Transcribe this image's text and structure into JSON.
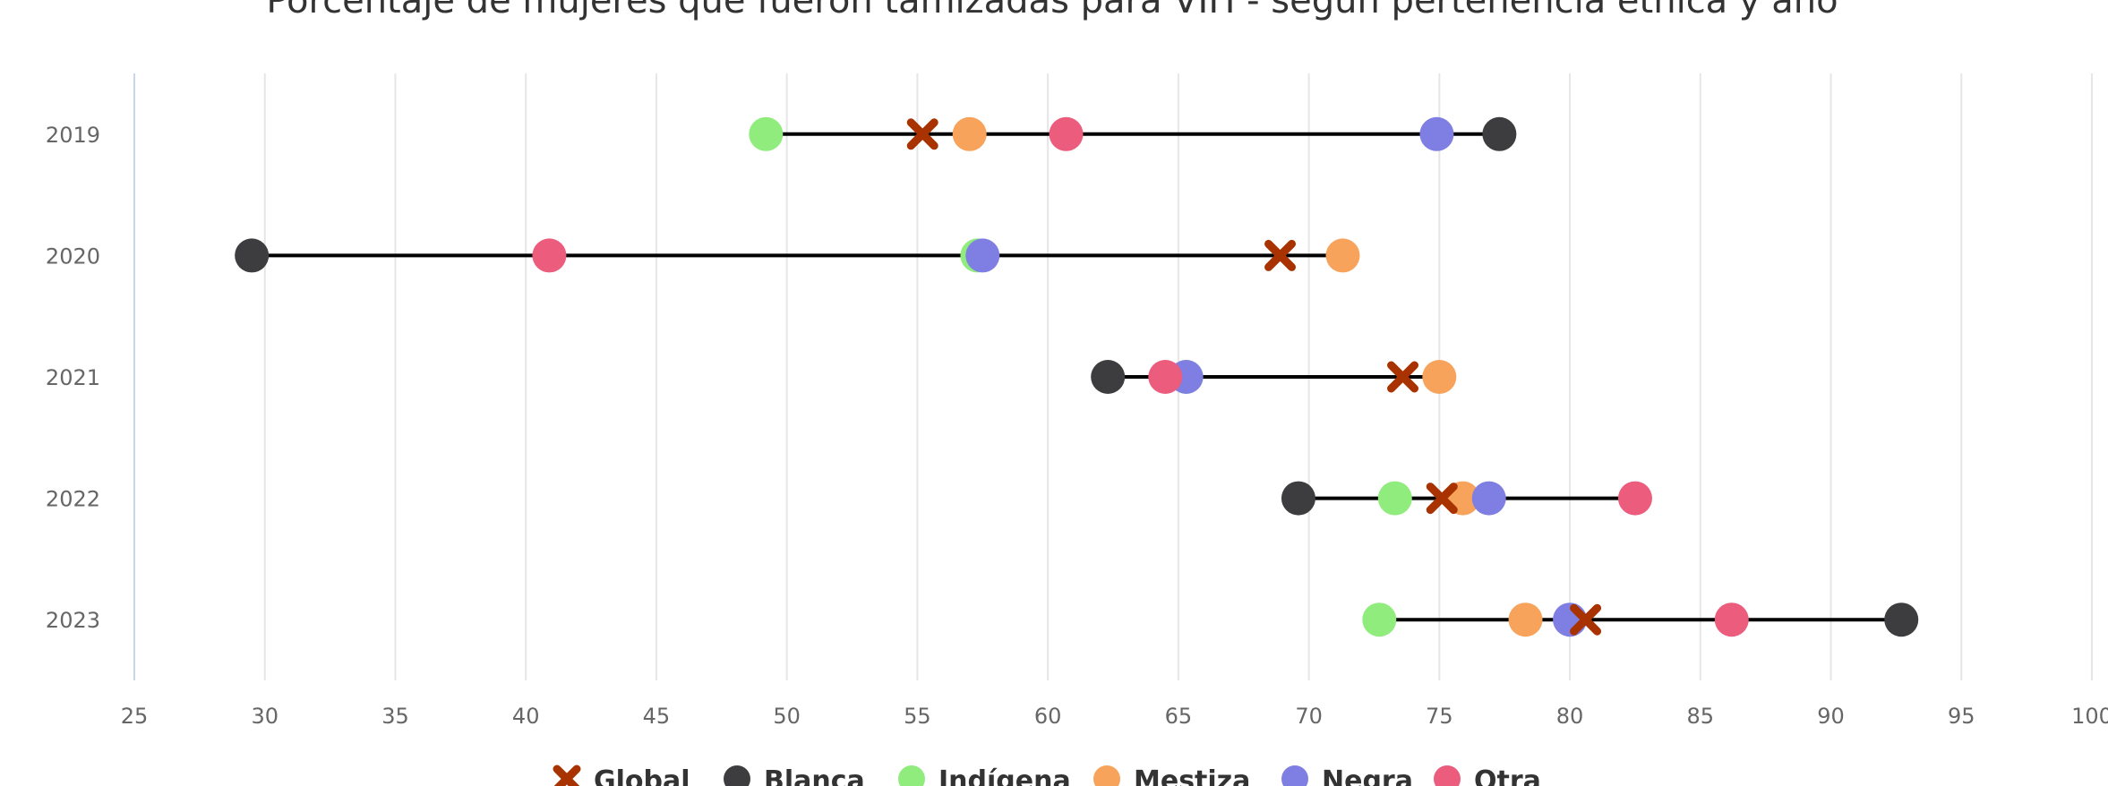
{
  "chart_data": {
    "type": "scatter",
    "subtype": "dumbbell",
    "title": "Porcentaje de mujeres que fueron tamizadas para VIH - según pertenencia étnica y año",
    "xlim": [
      25,
      100
    ],
    "x_ticks": [
      25,
      30,
      35,
      40,
      45,
      50,
      55,
      60,
      65,
      70,
      75,
      80,
      85,
      90,
      95,
      100
    ],
    "categories": [
      "2019",
      "2020",
      "2021",
      "2022",
      "2023"
    ],
    "grid": true,
    "legend_position": "bottom",
    "series": [
      {
        "name": "Global",
        "marker": "cross",
        "color": "#a83200",
        "values": [
          55.2,
          68.9,
          73.6,
          75.1,
          80.6
        ]
      },
      {
        "name": "Blanca",
        "marker": "circle",
        "color": "#3d3d3f",
        "values": [
          77.3,
          29.5,
          62.3,
          69.6,
          92.7
        ]
      },
      {
        "name": "Indígena",
        "marker": "circle",
        "color": "#90ed7d",
        "values": [
          49.2,
          57.3,
          65.3,
          73.3,
          72.7
        ]
      },
      {
        "name": "Mestiza",
        "marker": "circle",
        "color": "#f7a35c",
        "values": [
          57.0,
          71.3,
          75.0,
          75.9,
          78.3
        ]
      },
      {
        "name": "Negra",
        "marker": "circle",
        "color": "#7f7fe3",
        "values": [
          74.9,
          57.5,
          65.3,
          76.9,
          80.0
        ]
      },
      {
        "name": "Otra",
        "marker": "circle",
        "color": "#ec5c7c",
        "values": [
          60.7,
          40.9,
          64.5,
          82.5,
          86.2
        ]
      }
    ],
    "range_lines": [
      {
        "category": "2019",
        "from": 49.2,
        "to": 77.3
      },
      {
        "category": "2020",
        "from": 29.5,
        "to": 71.3
      },
      {
        "category": "2021",
        "from": 62.3,
        "to": 75.0
      },
      {
        "category": "2022",
        "from": 69.6,
        "to": 82.5
      },
      {
        "category": "2023",
        "from": 72.7,
        "to": 92.7
      }
    ],
    "line_color": "#000000"
  }
}
